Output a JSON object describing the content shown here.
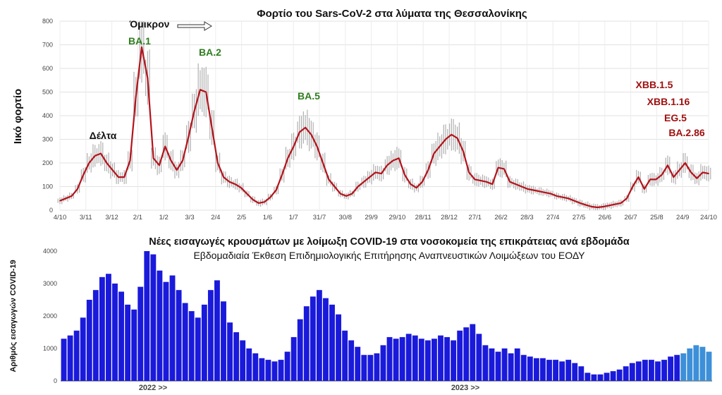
{
  "chart_data": [
    {
      "type": "line",
      "title": "Φορτίο του Sars-CoV-2 στα λύματα της Θεσσαλονίκης",
      "ylabel": "Ιικό φορτίο",
      "ylim": [
        0,
        800
      ],
      "yticks": [
        "0",
        "100",
        "200",
        "300",
        "400",
        "500",
        "600",
        "700",
        "800"
      ],
      "xticks": [
        "4/10",
        "3/11",
        "3/12",
        "2/1",
        "1/2",
        "3/3",
        "2/4",
        "2/5",
        "1/6",
        "1/7",
        "31/7",
        "30/8",
        "29/9",
        "29/10",
        "28/11",
        "28/12",
        "27/1",
        "26/2",
        "28/3",
        "27/4",
        "27/5",
        "26/6",
        "26/7",
        "25/8",
        "24/9",
        "24/10"
      ],
      "grid": true,
      "line_color": "#b5121b",
      "band_color": "#b0b0b0",
      "series": [
        {
          "values": [
            40,
            50,
            60,
            90,
            150,
            200,
            230,
            240,
            200,
            170,
            140,
            140,
            210,
            480,
            690,
            560,
            220,
            190,
            270,
            210,
            170,
            210,
            310,
            420,
            510,
            500,
            350,
            200,
            140,
            120,
            110,
            95,
            70,
            45,
            30,
            35,
            55,
            85,
            150,
            220,
            270,
            330,
            350,
            320,
            270,
            200,
            130,
            100,
            70,
            60,
            70,
            100,
            120,
            140,
            160,
            155,
            190,
            210,
            220,
            150,
            110,
            95,
            120,
            170,
            240,
            270,
            300,
            320,
            305,
            250,
            160,
            130,
            125,
            120,
            110,
            180,
            175,
            120,
            110,
            100,
            90,
            85,
            80,
            75,
            70,
            60,
            55,
            50,
            40,
            30,
            22,
            15,
            12,
            15,
            20,
            25,
            30,
            50,
            100,
            140,
            90,
            130,
            130,
            150,
            190,
            140,
            170,
            200,
            160,
            135,
            160,
            155
          ]
        }
      ],
      "annotations": [
        {
          "text": "Δέλτα",
          "x": "3/12",
          "color": "#111111"
        },
        {
          "text": "Όμικρον",
          "x": "2/1",
          "color": "#111111"
        },
        {
          "text": "BA.1",
          "x": "2/1",
          "color": "#2e7d1e"
        },
        {
          "text": "BA.2",
          "x": "2/4",
          "color": "#2e7d1e"
        },
        {
          "text": "BA.5",
          "x": "31/7",
          "color": "#2e7d1e"
        },
        {
          "text": "XBB.1.5",
          "x": "24/9",
          "color": "#a01010"
        },
        {
          "text": "XBB.1.16",
          "x": "24/9",
          "color": "#a01010"
        },
        {
          "text": "EG.5",
          "x": "24/9",
          "color": "#a01010"
        },
        {
          "text": "BA.2.86",
          "x": "24/10",
          "color": "#a01010"
        }
      ]
    },
    {
      "type": "bar",
      "title": "Νέες εισαγωγές κρουσμάτων με λοίμωξη COVID-19 στα νοσοκομεία της επικράτειας ανά εβδομάδα",
      "subtitle": "Εβδομαδιαία Έκθεση Επιδημιολογικής Επιτήρησης Αναπνευστικών Λοιμώξεων του ΕΟΔΥ",
      "ylabel": "Αριθμός εισαγωγών COVID-19",
      "ylim": [
        0,
        4000
      ],
      "yticks": [
        "0",
        "1000",
        "2000",
        "3000",
        "4000"
      ],
      "xticks": [
        "2022 >>",
        "2023 >>"
      ],
      "bar_color": "#1a1adb",
      "recent_bar_color": "#3c8fd8",
      "recent_count": 5,
      "values": [
        1300,
        1400,
        1550,
        1950,
        2500,
        2800,
        3200,
        3300,
        3000,
        2750,
        2350,
        2200,
        2900,
        4000,
        3900,
        3400,
        3050,
        3250,
        2800,
        2400,
        2150,
        1950,
        2350,
        2800,
        3100,
        2450,
        1800,
        1500,
        1250,
        1000,
        850,
        700,
        650,
        600,
        650,
        900,
        1350,
        1900,
        2300,
        2600,
        2800,
        2550,
        2350,
        2050,
        1550,
        1250,
        1050,
        800,
        800,
        850,
        1100,
        1350,
        1300,
        1350,
        1450,
        1400,
        1300,
        1250,
        1300,
        1400,
        1350,
        1250,
        1550,
        1650,
        1750,
        1450,
        1100,
        1000,
        900,
        1000,
        850,
        1000,
        800,
        750,
        700,
        700,
        650,
        650,
        600,
        650,
        550,
        450,
        250,
        200,
        200,
        250,
        300,
        350,
        450,
        550,
        600,
        650,
        650,
        600,
        650,
        750,
        800,
        850,
        1000,
        1100,
        1050,
        900
      ]
    }
  ]
}
